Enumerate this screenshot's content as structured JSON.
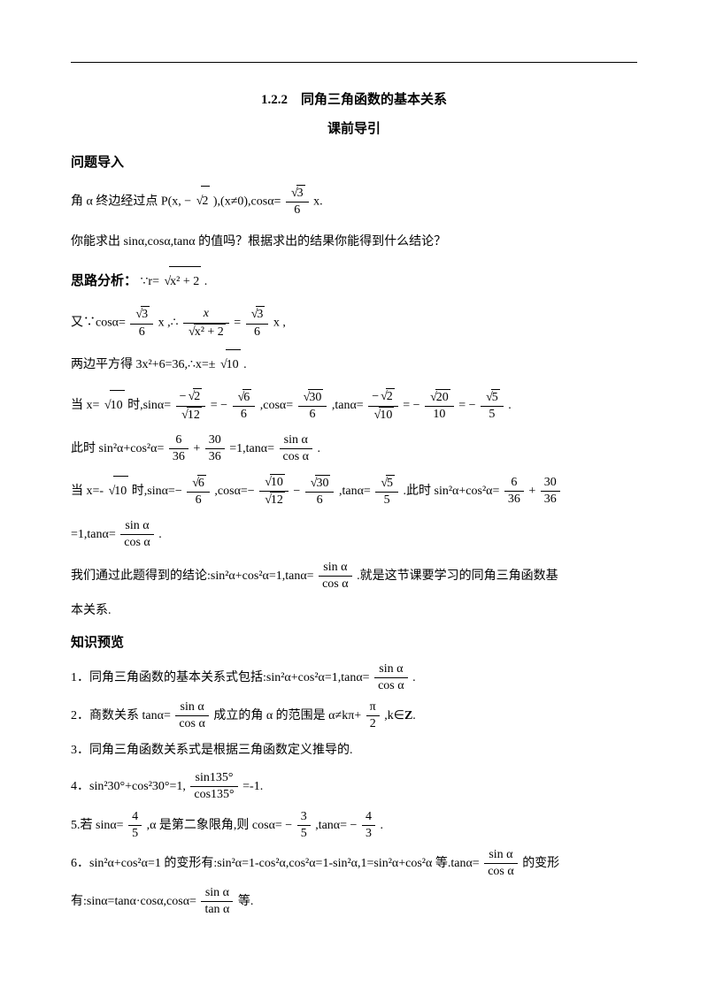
{
  "title": "1.2.2　同角三角函数的基本关系",
  "subtitle": "课前导引",
  "section1": {
    "head": "问题导入",
    "p1_a": "角 α 终边经过点 P(x, −",
    "p1_b": " ),(x≠0),cosα=",
    "p1_c": " x.",
    "sqrt2": "2",
    "frac1_num": "3",
    "frac1_den": "6",
    "p2": "你能求出 sinα,cosα,tanα 的值吗？根据求出的结果你能得到什么结论？"
  },
  "section2": {
    "head": "思路分析：",
    "p1_a": "∵r=",
    "p1_sqrt": "x² + 2",
    "p1_b": " .",
    "p2_a": "又∵cosα=",
    "p2_b": " x ,∴",
    "p2_c": " =",
    "p2_d": " x ,",
    "f_s3_6_num": "3",
    "f_s3_6_den": "6",
    "f_x_num": "x",
    "f_x_den_sqrt": "x² + 2",
    "p3_a": "两边平方得 3x²+6=36,∴x=±",
    "p3_sqrt": "10",
    "p3_b": " .",
    "p4_a": "当 x=",
    "p4_sqrt": "10",
    "p4_b": " 时,sinα=",
    "p4_c": " = −",
    "p4_d": " ,cosα=",
    "p4_e": " ,tanα=",
    "p4_f": " = −",
    "p4_g": " = −",
    "p4_h": " .",
    "f1_num": "2",
    "f1_den": "12",
    "f2_num": "6",
    "f2_den": "6",
    "f3_num": "30",
    "f3_den": "6",
    "f4_num": "2",
    "f4_den": "10",
    "f5_num": "20",
    "f5_den": "10",
    "f6_num": "5",
    "f6_den": "5",
    "p5_a": "此时 sin²α+cos²α=",
    "p5_b": " + ",
    "p5_c": " =1,tanα=",
    "p5_d": " .",
    "f7_num": "6",
    "f7_den": "36",
    "f8_num": "30",
    "f8_den": "36",
    "f_sincos_num": "sin α",
    "f_sincos_den": "cos α",
    "p6_a": "当 x=-",
    "p6_sqrt": "10",
    "p6_b": " 时,sinα=−",
    "p6_c": " ,cosα=−",
    "p6_d": " −",
    "p6_e": " ,tanα=",
    "p6_f": " .此时 sin²α+cos²α=",
    "p6_g": " + ",
    "fa_num": "6",
    "fa_den": "6",
    "fb_num": "10",
    "fb_den": "12",
    "fc_num": "30",
    "fc_den": "6",
    "fd_num": "5",
    "fd_den": "5",
    "fe_num": "6",
    "fe_den": "36",
    "ff_num": "30",
    "ff_den": "36",
    "p7_a": "=1,tanα=",
    "p7_b": " .",
    "p8_a": "我们通过此题得到的结论:sin²α+cos²α=1,tanα=",
    "p8_b": " .就是这节课要学习的同角三角函数基",
    "p8_c": "本关系."
  },
  "section3": {
    "head": "知识预览",
    "i1_a": "1．同角三角函数的基本关系式包括:sin²α+cos²α=1,tanα=",
    "i1_b": " .",
    "i2_a": "2．商数关系 tanα=",
    "i2_b": " 成立的角 α 的范围是 α≠kπ+",
    "i2_c": " ,k∈",
    "i2_z": "Z",
    "i2_d": ".",
    "f_pi2_num": "π",
    "f_pi2_den": "2",
    "i3": "3．同角三角函数关系式是根据三角函数定义推导的.",
    "i4_a": "4．sin²30°+cos²30°=1, ",
    "i4_b": " =-1.",
    "f_135_num": "sin135°",
    "f_135_den": "cos135°",
    "i5_a": "5.若 sinα=",
    "i5_b": " ,α 是第二象限角,则 cosα= −",
    "i5_c": " ,tanα= −",
    "i5_d": " .",
    "f45_num": "4",
    "f45_den": "5",
    "f35_num": "3",
    "f35_den": "5",
    "f43_num": "4",
    "f43_den": "3",
    "i6_a": "6．sin²α+cos²α=1 的变形有:sin²α=1-cos²α,cos²α=1-sin²α,1=sin²α+cos²α 等.tanα=",
    "i6_b": " 的变形",
    "i6_c": "有:sinα=tanα·cosα,cosα=",
    "i6_d": " 等.",
    "f_sintan_num": "sin α",
    "f_sintan_den": "tan α"
  }
}
